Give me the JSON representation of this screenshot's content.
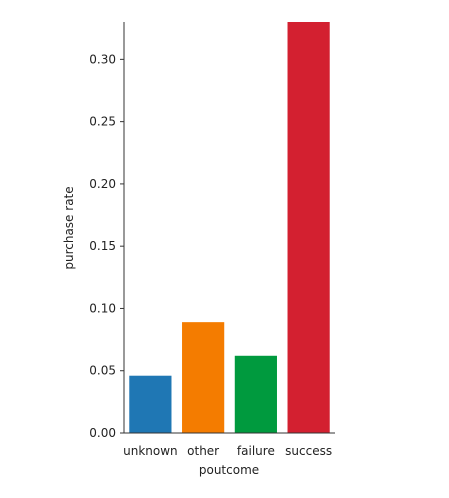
{
  "chart_data": {
    "type": "bar",
    "title": "",
    "xlabel": "poutcome",
    "ylabel": "purchase rate",
    "categories": [
      "unknown",
      "other",
      "failure",
      "success"
    ],
    "values": [
      0.046,
      0.089,
      0.062,
      0.33
    ],
    "colors": [
      "#1f77b4",
      "#f47c00",
      "#009a3e",
      "#d32030"
    ],
    "ylim": [
      0,
      0.33
    ],
    "yticks": [
      0.0,
      0.05,
      0.1,
      0.15,
      0.2,
      0.25,
      0.3
    ],
    "ytick_labels": [
      "0.00",
      "0.05",
      "0.10",
      "0.15",
      "0.20",
      "0.25",
      "0.30"
    ],
    "grid": false,
    "legend": "none"
  }
}
